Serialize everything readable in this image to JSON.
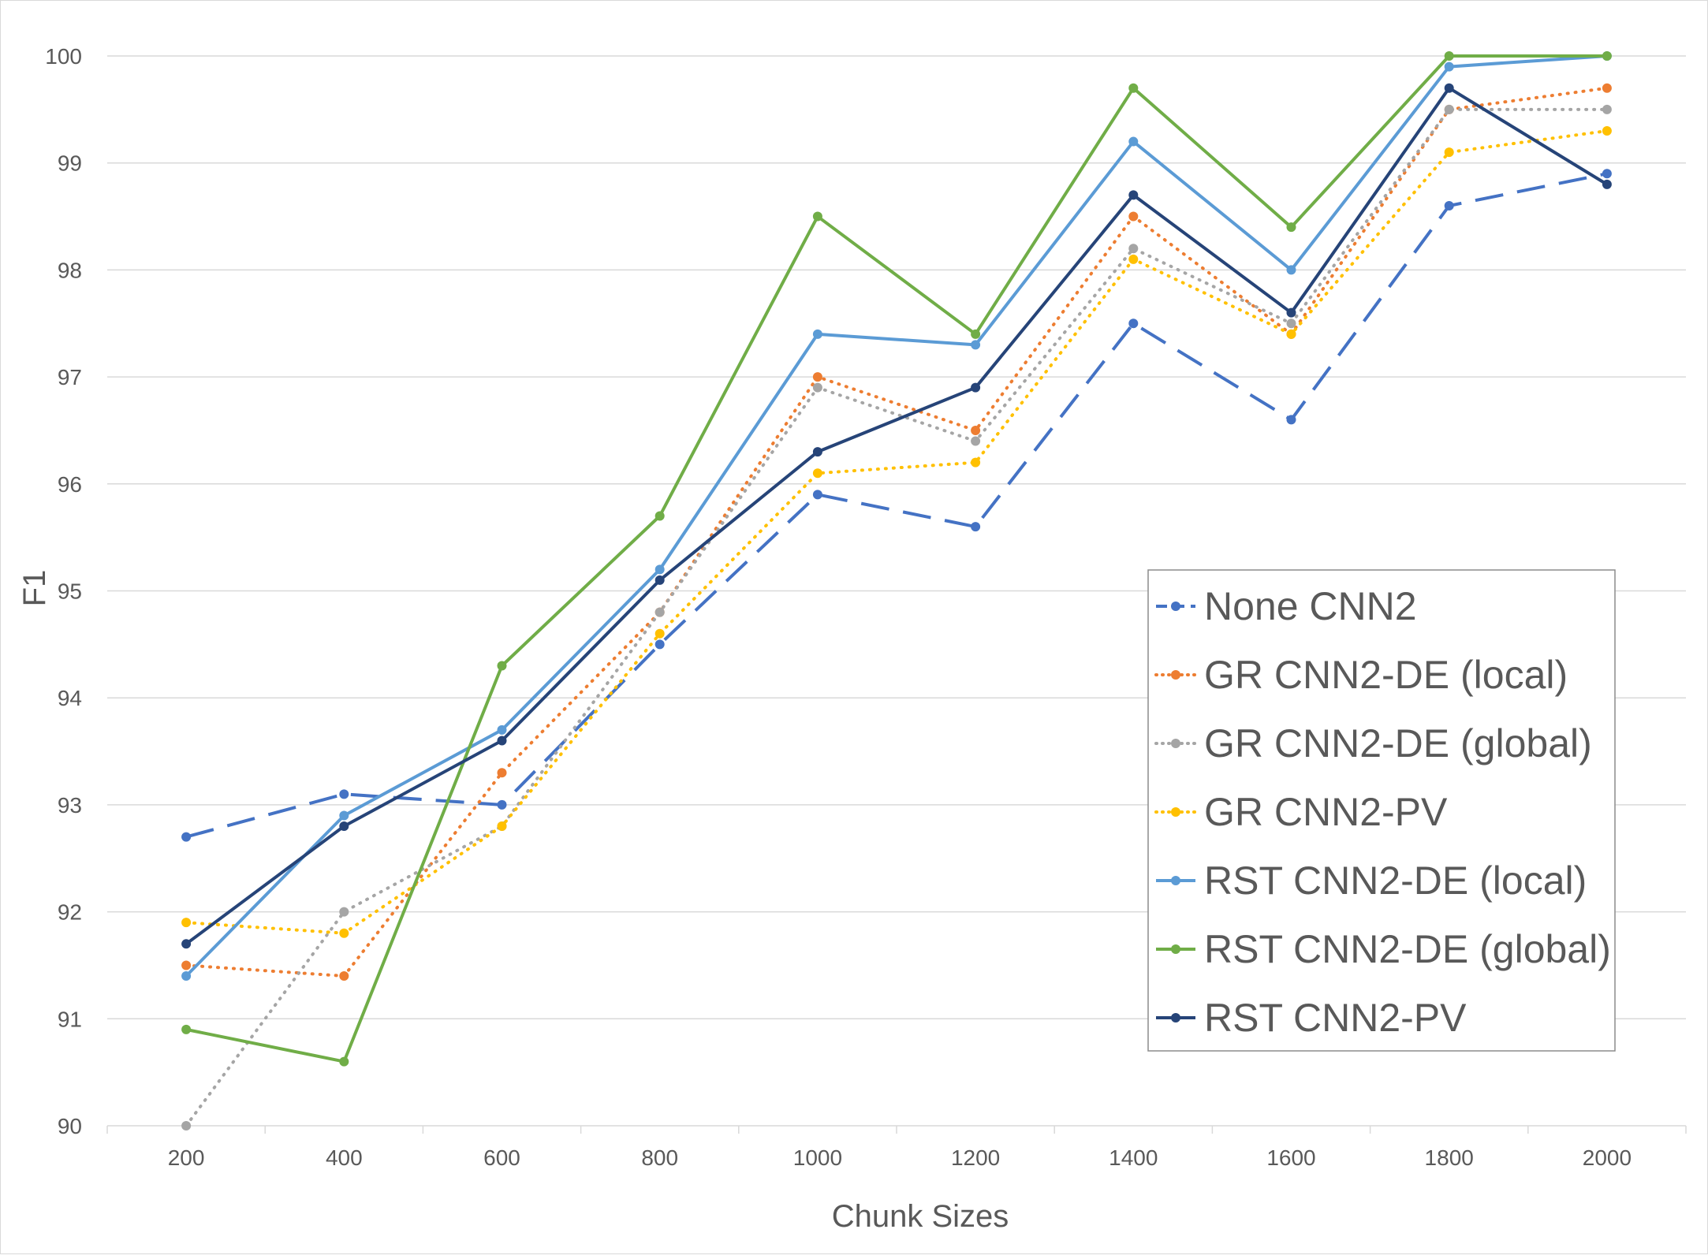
{
  "chart_data": {
    "type": "line",
    "title": "",
    "xlabel": "Chunk Sizes",
    "ylabel": "F1",
    "x": [
      200,
      400,
      600,
      800,
      1000,
      1200,
      1400,
      1600,
      1800,
      2000
    ],
    "x_tick_labels": [
      "200",
      "400",
      "600",
      "800",
      "1000",
      "1200",
      "1400",
      "1600",
      "1800",
      "2000"
    ],
    "ylim": [
      90,
      100
    ],
    "y_ticks": [
      90,
      91,
      92,
      93,
      94,
      95,
      96,
      97,
      98,
      99,
      100
    ],
    "y_tick_labels": [
      "90",
      "91",
      "92",
      "93",
      "94",
      "95",
      "96",
      "97",
      "98",
      "99",
      "100"
    ],
    "grid": "horizontal",
    "legend_position": "right",
    "series": [
      {
        "name": "None CNN2",
        "color": "#4472C4",
        "dash": "long-dash",
        "values": [
          92.7,
          93.1,
          93.0,
          94.5,
          95.9,
          95.6,
          97.5,
          96.6,
          98.6,
          98.9
        ]
      },
      {
        "name": "GR CNN2-DE (local)",
        "color": "#ED7D31",
        "dash": "dotted",
        "values": [
          91.5,
          91.4,
          93.3,
          94.8,
          97.0,
          96.5,
          98.5,
          97.4,
          99.5,
          99.7
        ]
      },
      {
        "name": "GR CNN2-DE (global)",
        "color": "#A5A5A5",
        "dash": "dotted",
        "values": [
          90.0,
          92.0,
          92.8,
          94.8,
          96.9,
          96.4,
          98.2,
          97.5,
          99.5,
          99.5
        ]
      },
      {
        "name": "GR CNN2-PV",
        "color": "#FFC000",
        "dash": "dotted",
        "values": [
          91.9,
          91.8,
          92.8,
          94.6,
          96.1,
          96.2,
          98.1,
          97.4,
          99.1,
          99.3
        ]
      },
      {
        "name": "RST CNN2-DE (local)",
        "color": "#5B9BD5",
        "dash": "solid",
        "values": [
          91.4,
          92.9,
          93.7,
          95.2,
          97.4,
          97.3,
          99.2,
          98.0,
          99.9,
          100.0
        ]
      },
      {
        "name": "RST CNN2-DE (global)",
        "color": "#70AD47",
        "dash": "solid",
        "values": [
          90.9,
          90.6,
          94.3,
          95.7,
          98.5,
          97.4,
          99.7,
          98.4,
          100.0,
          100.0
        ]
      },
      {
        "name": "RST CNN2-PV",
        "color": "#264478",
        "dash": "solid",
        "values": [
          91.7,
          92.8,
          93.6,
          95.1,
          96.3,
          96.9,
          98.7,
          97.6,
          99.7,
          98.8
        ]
      }
    ]
  }
}
